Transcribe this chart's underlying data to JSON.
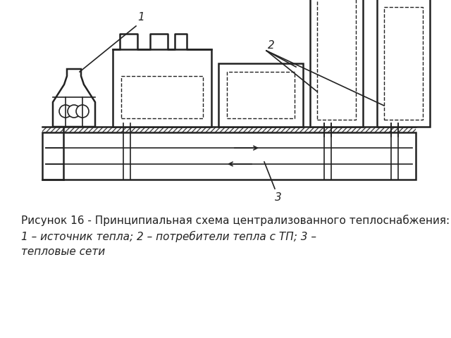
{
  "bg_color": "#ffffff",
  "line_color": "#222222",
  "hatch_color": "#444444",
  "caption_line1": "Рисунок 16 - Принципиальная схема централизованного теплоснабжения:",
  "caption_line2": "1 – источник тепла; 2 – потребители тепла с ТП; 3 –",
  "caption_line3": "тепловые сети",
  "caption_fontsize": 11.0
}
